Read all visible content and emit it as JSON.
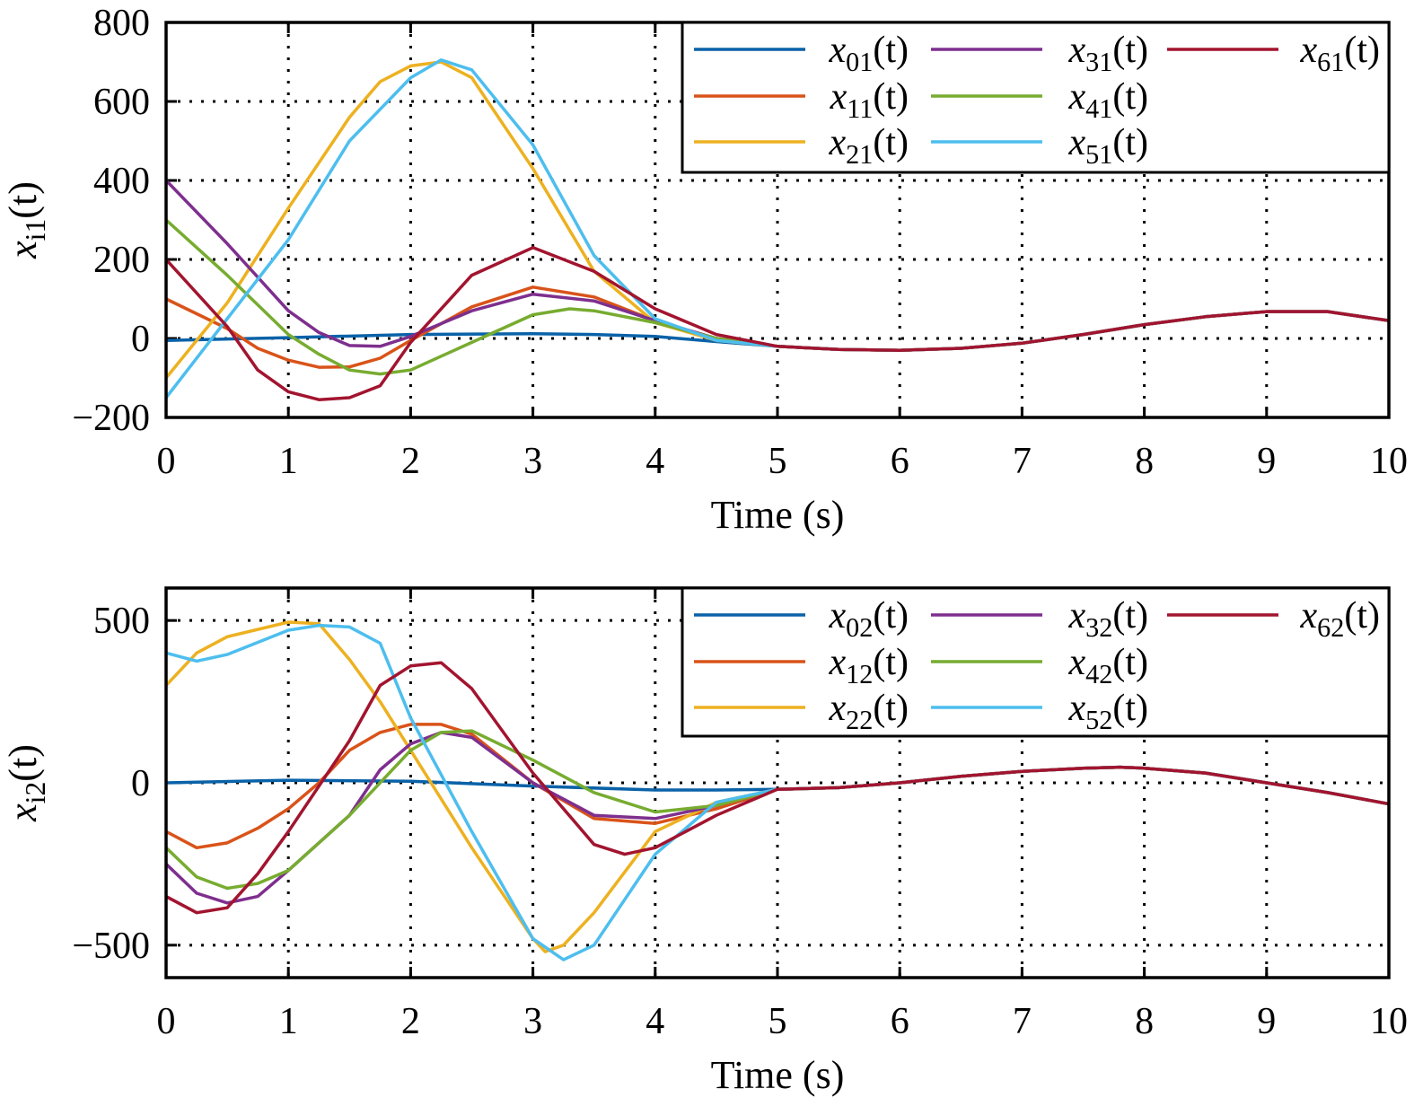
{
  "colors": [
    "#0A62A8",
    "#D95319",
    "#EDB120",
    "#7E2F8E",
    "#77AC30",
    "#4DBEEE",
    "#A2142F"
  ],
  "chart_data": [
    {
      "type": "line",
      "xlabel": "Time (s)",
      "ylabel": {
        "base": "x",
        "sub": "i1",
        "arg": "(t)"
      },
      "xlim": [
        0,
        10
      ],
      "ylim": [
        -200,
        800
      ],
      "xticks": [
        "0",
        "1",
        "2",
        "3",
        "4",
        "5",
        "6",
        "7",
        "8",
        "9",
        "10"
      ],
      "yticks": [
        {
          "v": -200,
          "label": "−200"
        },
        {
          "v": 0,
          "label": "0"
        },
        {
          "v": 200,
          "label": "200"
        },
        {
          "v": 400,
          "label": "400"
        },
        {
          "v": 600,
          "label": "600"
        },
        {
          "v": 800,
          "label": "800"
        }
      ],
      "grid": true,
      "legend_position": "top-right",
      "tail": [
        [
          5,
          -20
        ],
        [
          5.5,
          -28
        ],
        [
          6,
          -30
        ],
        [
          6.5,
          -25
        ],
        [
          7,
          -12
        ],
        [
          7.5,
          10
        ],
        [
          8,
          35
        ],
        [
          8.5,
          55
        ],
        [
          9,
          68
        ],
        [
          9.5,
          68
        ],
        [
          10,
          45
        ]
      ],
      "series": [
        {
          "base": "x",
          "sub": "01",
          "arg": "(t)",
          "points": [
            [
              0,
              -5
            ],
            [
              1,
              2
            ],
            [
              2,
              10
            ],
            [
              3,
              12
            ],
            [
              3.5,
              10
            ],
            [
              4,
              5
            ],
            [
              4.5,
              -8
            ]
          ]
        },
        {
          "base": "x",
          "sub": "11",
          "arg": "(t)",
          "points": [
            [
              0,
              100
            ],
            [
              0.5,
              25
            ],
            [
              0.75,
              -25
            ],
            [
              1,
              -55
            ],
            [
              1.25,
              -73
            ],
            [
              1.5,
              -72
            ],
            [
              1.75,
              -50
            ],
            [
              2,
              -5
            ],
            [
              2.5,
              80
            ],
            [
              3,
              130
            ],
            [
              3.5,
              105
            ],
            [
              4,
              45
            ],
            [
              4.5,
              0
            ]
          ]
        },
        {
          "base": "x",
          "sub": "21",
          "arg": "(t)",
          "points": [
            [
              0,
              -100
            ],
            [
              0.5,
              90
            ],
            [
              1,
              330
            ],
            [
              1.5,
              560
            ],
            [
              1.75,
              650
            ],
            [
              2,
              690
            ],
            [
              2.25,
              700
            ],
            [
              2.5,
              660
            ],
            [
              3,
              430
            ],
            [
              3.5,
              170
            ],
            [
              4,
              40
            ],
            [
              4.5,
              -5
            ]
          ]
        },
        {
          "base": "x",
          "sub": "31",
          "arg": "(t)",
          "points": [
            [
              0,
              400
            ],
            [
              0.5,
              240
            ],
            [
              1,
              70
            ],
            [
              1.25,
              15
            ],
            [
              1.5,
              -18
            ],
            [
              1.75,
              -20
            ],
            [
              2,
              5
            ],
            [
              2.5,
              70
            ],
            [
              3,
              112
            ],
            [
              3.5,
              95
            ],
            [
              4,
              45
            ],
            [
              4.5,
              0
            ]
          ]
        },
        {
          "base": "x",
          "sub": "41",
          "arg": "(t)",
          "points": [
            [
              0,
              300
            ],
            [
              0.5,
              160
            ],
            [
              1,
              10
            ],
            [
              1.25,
              -40
            ],
            [
              1.5,
              -80
            ],
            [
              1.75,
              -90
            ],
            [
              2,
              -80
            ],
            [
              2.5,
              -10
            ],
            [
              3,
              60
            ],
            [
              3.3,
              75
            ],
            [
              3.5,
              70
            ],
            [
              4,
              40
            ],
            [
              4.5,
              0
            ]
          ]
        },
        {
          "base": "x",
          "sub": "51",
          "arg": "(t)",
          "points": [
            [
              0,
              -150
            ],
            [
              0.5,
              50
            ],
            [
              1,
              250
            ],
            [
              1.5,
              500
            ],
            [
              2,
              660
            ],
            [
              2.25,
              705
            ],
            [
              2.5,
              680
            ],
            [
              3,
              490
            ],
            [
              3.5,
              210
            ],
            [
              4,
              50
            ],
            [
              4.5,
              -5
            ]
          ]
        },
        {
          "base": "x",
          "sub": "61",
          "arg": "(t)",
          "points": [
            [
              0,
              200
            ],
            [
              0.5,
              30
            ],
            [
              0.75,
              -80
            ],
            [
              1,
              -135
            ],
            [
              1.25,
              -155
            ],
            [
              1.5,
              -150
            ],
            [
              1.75,
              -120
            ],
            [
              2,
              -10
            ],
            [
              2.5,
              160
            ],
            [
              3,
              230
            ],
            [
              3.5,
              170
            ],
            [
              4,
              75
            ],
            [
              4.5,
              10
            ]
          ]
        }
      ]
    },
    {
      "type": "line",
      "xlabel": "Time (s)",
      "ylabel": {
        "base": "x",
        "sub": "i2",
        "arg": "(t)"
      },
      "xlim": [
        0,
        10
      ],
      "ylim": [
        -600,
        600
      ],
      "xticks": [
        "0",
        "1",
        "2",
        "3",
        "4",
        "5",
        "6",
        "7",
        "8",
        "9",
        "10"
      ],
      "yticks": [
        {
          "v": -500,
          "label": "−500"
        },
        {
          "v": 0,
          "label": "0"
        },
        {
          "v": 500,
          "label": "500"
        }
      ],
      "grid": true,
      "legend_position": "top-right",
      "tail": [
        [
          5,
          -20
        ],
        [
          5.5,
          -15
        ],
        [
          6,
          0
        ],
        [
          6.5,
          20
        ],
        [
          7,
          35
        ],
        [
          7.5,
          45
        ],
        [
          7.8,
          48
        ],
        [
          8,
          45
        ],
        [
          8.5,
          30
        ],
        [
          9,
          0
        ],
        [
          9.5,
          -30
        ],
        [
          10,
          -65
        ]
      ],
      "series": [
        {
          "base": "x",
          "sub": "02",
          "arg": "(t)",
          "points": [
            [
              0,
              0
            ],
            [
              1,
              8
            ],
            [
              2,
              5
            ],
            [
              3,
              -10
            ],
            [
              4,
              -22
            ],
            [
              4.5,
              -22
            ]
          ]
        },
        {
          "base": "x",
          "sub": "12",
          "arg": "(t)",
          "points": [
            [
              0,
              -150
            ],
            [
              0.25,
              -200
            ],
            [
              0.5,
              -185
            ],
            [
              0.75,
              -140
            ],
            [
              1,
              -80
            ],
            [
              1.25,
              0
            ],
            [
              1.5,
              100
            ],
            [
              1.75,
              155
            ],
            [
              2,
              180
            ],
            [
              2.25,
              180
            ],
            [
              2.5,
              150
            ],
            [
              3,
              0
            ],
            [
              3.5,
              -110
            ],
            [
              4,
              -125
            ],
            [
              4.5,
              -80
            ]
          ]
        },
        {
          "base": "x",
          "sub": "22",
          "arg": "(t)",
          "points": [
            [
              0,
              300
            ],
            [
              0.25,
              400
            ],
            [
              0.5,
              450
            ],
            [
              1,
              495
            ],
            [
              1.25,
              490
            ],
            [
              1.5,
              380
            ],
            [
              1.75,
              250
            ],
            [
              2,
              100
            ],
            [
              2.5,
              -200
            ],
            [
              3,
              -480
            ],
            [
              3.1,
              -520
            ],
            [
              3.25,
              -500
            ],
            [
              3.5,
              -400
            ],
            [
              4,
              -150
            ],
            [
              4.5,
              -60
            ]
          ]
        },
        {
          "base": "x",
          "sub": "32",
          "arg": "(t)",
          "points": [
            [
              0,
              -250
            ],
            [
              0.25,
              -340
            ],
            [
              0.5,
              -370
            ],
            [
              0.75,
              -350
            ],
            [
              1,
              -270
            ],
            [
              1.5,
              -100
            ],
            [
              1.75,
              40
            ],
            [
              2,
              120
            ],
            [
              2.25,
              155
            ],
            [
              2.5,
              140
            ],
            [
              3,
              0
            ],
            [
              3.5,
              -100
            ],
            [
              4,
              -110
            ],
            [
              4.5,
              -70
            ]
          ]
        },
        {
          "base": "x",
          "sub": "42",
          "arg": "(t)",
          "points": [
            [
              0,
              -200
            ],
            [
              0.25,
              -290
            ],
            [
              0.5,
              -325
            ],
            [
              0.75,
              -310
            ],
            [
              1,
              -270
            ],
            [
              1.5,
              -100
            ],
            [
              2,
              100
            ],
            [
              2.25,
              155
            ],
            [
              2.5,
              160
            ],
            [
              3,
              70
            ],
            [
              3.5,
              -30
            ],
            [
              4,
              -90
            ],
            [
              4.5,
              -70
            ]
          ]
        },
        {
          "base": "x",
          "sub": "52",
          "arg": "(t)",
          "points": [
            [
              0,
              400
            ],
            [
              0.25,
              375
            ],
            [
              0.5,
              395
            ],
            [
              1,
              470
            ],
            [
              1.25,
              485
            ],
            [
              1.5,
              480
            ],
            [
              1.75,
              430
            ],
            [
              2,
              200
            ],
            [
              2.5,
              -150
            ],
            [
              3,
              -480
            ],
            [
              3.25,
              -545
            ],
            [
              3.5,
              -500
            ],
            [
              4,
              -220
            ],
            [
              4.5,
              -60
            ]
          ]
        },
        {
          "base": "x",
          "sub": "62",
          "arg": "(t)",
          "points": [
            [
              0,
              -350
            ],
            [
              0.25,
              -400
            ],
            [
              0.5,
              -385
            ],
            [
              0.75,
              -280
            ],
            [
              1,
              -150
            ],
            [
              1.5,
              130
            ],
            [
              1.75,
              300
            ],
            [
              2,
              360
            ],
            [
              2.25,
              370
            ],
            [
              2.5,
              290
            ],
            [
              3,
              30
            ],
            [
              3.5,
              -190
            ],
            [
              3.75,
              -220
            ],
            [
              4,
              -200
            ],
            [
              4.5,
              -100
            ]
          ]
        }
      ]
    }
  ]
}
